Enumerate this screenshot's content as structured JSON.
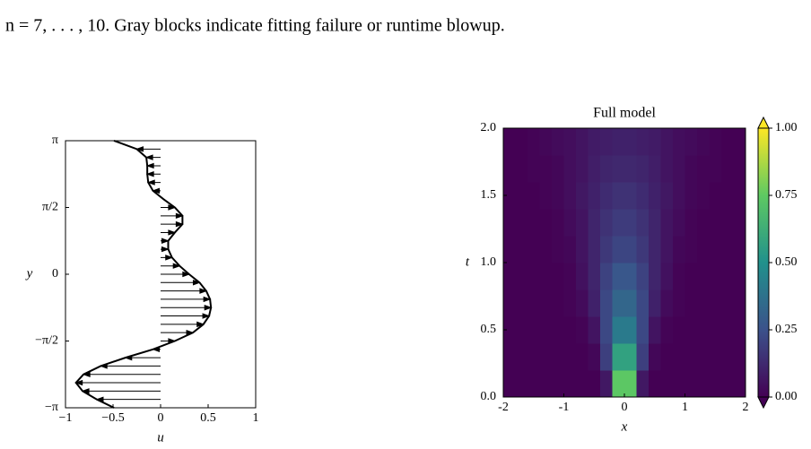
{
  "caption": "n = 7, . . . , 10. Gray blocks indicate fitting failure or runtime blowup.",
  "chart_data": [
    {
      "type": "profile",
      "xlabel": "u",
      "ylabel": "y",
      "color": "#000000",
      "x": [
        -0.49,
        -0.25,
        -0.15,
        -0.14,
        -0.14,
        -0.13,
        -0.08,
        0.03,
        0.15,
        0.23,
        0.23,
        0.15,
        0.08,
        0.08,
        0.12,
        0.2,
        0.3,
        0.41,
        0.48,
        0.52,
        0.53,
        0.51,
        0.45,
        0.34,
        0.15,
        -0.08,
        -0.37,
        -0.63,
        -0.81,
        -0.89,
        -0.82,
        -0.67,
        -0.49
      ],
      "y": [
        3.1416,
        2.9452,
        2.7489,
        2.5525,
        2.3562,
        2.1598,
        1.9635,
        1.7671,
        1.5708,
        1.3744,
        1.1781,
        0.9817,
        0.7854,
        0.589,
        0.3927,
        0.1963,
        0,
        -0.1963,
        -0.3927,
        -0.589,
        -0.7854,
        -0.9817,
        -1.1781,
        -1.3744,
        -1.5708,
        -1.7671,
        -1.9635,
        -2.1598,
        -2.3562,
        -2.5525,
        -2.7489,
        -2.9452,
        -3.1416
      ],
      "xlim": [
        -1,
        1
      ],
      "ylim": [
        -3.1416,
        3.1416
      ],
      "xticks": [
        {
          "value": -1,
          "label": "−1"
        },
        {
          "value": -0.5,
          "label": "−0.5"
        },
        0,
        0.5,
        1
      ],
      "yticks": [
        {
          "value": -3.1416,
          "label": "−π"
        },
        {
          "value": -1.5708,
          "label": "−π/2"
        },
        0,
        {
          "value": 1.5708,
          "label": "π/2"
        },
        {
          "value": 3.1416,
          "label": "π"
        }
      ]
    },
    {
      "type": "heatmap",
      "title": "Full model",
      "xlabel": "x",
      "ylabel": "t",
      "x": [
        -1.9,
        -1.7,
        -1.5,
        -1.3,
        -1.1,
        -0.9,
        -0.7,
        -0.5,
        -0.3,
        -0.1,
        0.1,
        0.3,
        0.5,
        0.7,
        0.9,
        1.1,
        1.3,
        1.5,
        1.7,
        1.9
      ],
      "t": [
        0.1,
        0.3,
        0.5,
        0.7,
        0.9,
        1.1,
        1.3,
        1.5,
        1.7,
        1.9
      ],
      "z": [
        [
          0,
          0,
          0,
          0,
          0,
          0,
          0,
          0,
          0.07,
          0.74,
          0.74,
          0.07,
          0,
          0,
          0,
          0,
          0,
          0,
          0,
          0
        ],
        [
          0,
          0,
          0,
          0,
          0,
          0,
          0,
          0.02,
          0.19,
          0.57,
          0.57,
          0.19,
          0.02,
          0,
          0,
          0,
          0,
          0,
          0,
          0
        ],
        [
          0,
          0,
          0,
          0,
          0,
          0,
          0.01,
          0.06,
          0.22,
          0.41,
          0.41,
          0.22,
          0.06,
          0.01,
          0,
          0,
          0,
          0,
          0,
          0
        ],
        [
          0,
          0,
          0,
          0,
          0,
          0.01,
          0.03,
          0.1,
          0.22,
          0.33,
          0.33,
          0.22,
          0.1,
          0.03,
          0.01,
          0,
          0,
          0,
          0,
          0
        ],
        [
          0,
          0,
          0,
          0,
          0,
          0.01,
          0.05,
          0.11,
          0.2,
          0.27,
          0.27,
          0.2,
          0.11,
          0.05,
          0.01,
          0,
          0,
          0,
          0,
          0
        ],
        [
          0,
          0,
          0,
          0,
          0.01,
          0.02,
          0.06,
          0.11,
          0.17,
          0.21,
          0.21,
          0.17,
          0.11,
          0.06,
          0.02,
          0.01,
          0,
          0,
          0,
          0
        ],
        [
          0,
          0,
          0,
          0,
          0.01,
          0.03,
          0.06,
          0.11,
          0.15,
          0.18,
          0.18,
          0.15,
          0.11,
          0.06,
          0.03,
          0.01,
          0,
          0,
          0,
          0
        ],
        [
          0,
          0,
          0,
          0.01,
          0.02,
          0.04,
          0.07,
          0.1,
          0.13,
          0.15,
          0.15,
          0.13,
          0.1,
          0.07,
          0.04,
          0.02,
          0.01,
          0,
          0,
          0
        ],
        [
          0,
          0,
          0.01,
          0.01,
          0.02,
          0.04,
          0.06,
          0.09,
          0.11,
          0.12,
          0.12,
          0.11,
          0.09,
          0.06,
          0.04,
          0.02,
          0.01,
          0.01,
          0,
          0
        ],
        [
          0,
          0,
          0.01,
          0.02,
          0.03,
          0.04,
          0.06,
          0.08,
          0.09,
          0.1,
          0.1,
          0.09,
          0.08,
          0.06,
          0.04,
          0.03,
          0.02,
          0.01,
          0,
          0
        ]
      ],
      "xlim": [
        -2,
        2
      ],
      "ylim": [
        0,
        2
      ],
      "zlim": [
        0,
        1
      ],
      "xticks": [
        -2,
        -1,
        0,
        1,
        2
      ],
      "yticks": [
        {
          "value": 0,
          "label": "0.0"
        },
        0.5,
        {
          "value": 1,
          "label": "1.0"
        },
        1.5,
        {
          "value": 2,
          "label": "2.0"
        }
      ],
      "zticks": [
        {
          "value": 0,
          "label": "0.00"
        },
        0.25,
        {
          "value": 0.5,
          "label": "0.50"
        },
        0.75,
        {
          "value": 1,
          "label": "1.00"
        }
      ],
      "colormap": [
        "#440154",
        "#3b528b",
        "#21918c",
        "#5ec962",
        "#fde725"
      ],
      "colorbar_extend": "both"
    }
  ]
}
